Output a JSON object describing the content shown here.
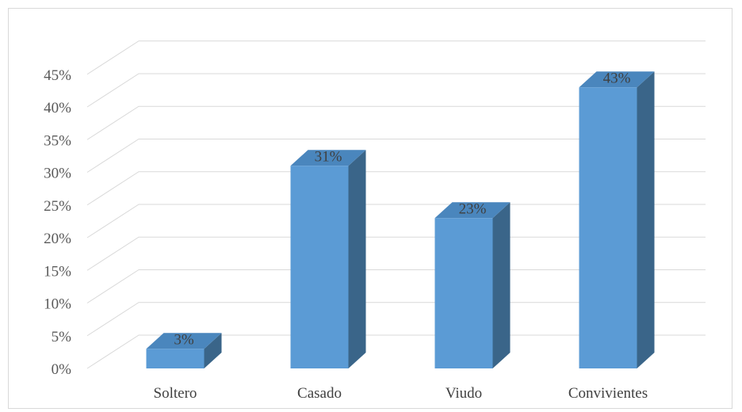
{
  "chart_data": {
    "type": "bar",
    "style": "3d-column",
    "categories": [
      "Soltero",
      "Casado",
      "Viudo",
      "Convivientes"
    ],
    "values": [
      3,
      31,
      23,
      43
    ],
    "value_labels": [
      "3%",
      "31%",
      "23%",
      "43%"
    ],
    "ylim": [
      0,
      45
    ],
    "yticks": [
      0,
      5,
      10,
      15,
      20,
      25,
      30,
      35,
      40,
      45
    ],
    "ytick_labels": [
      "0%",
      "5%",
      "10%",
      "15%",
      "20%",
      "25%",
      "30%",
      "35%",
      "40%",
      "45%"
    ],
    "grid": true,
    "legend": "none",
    "colors": {
      "bar_front": "#5b9bd5",
      "bar_top": "#4a86bd",
      "bar_side": "#3a6589",
      "grid": "#d9d9d9"
    }
  }
}
